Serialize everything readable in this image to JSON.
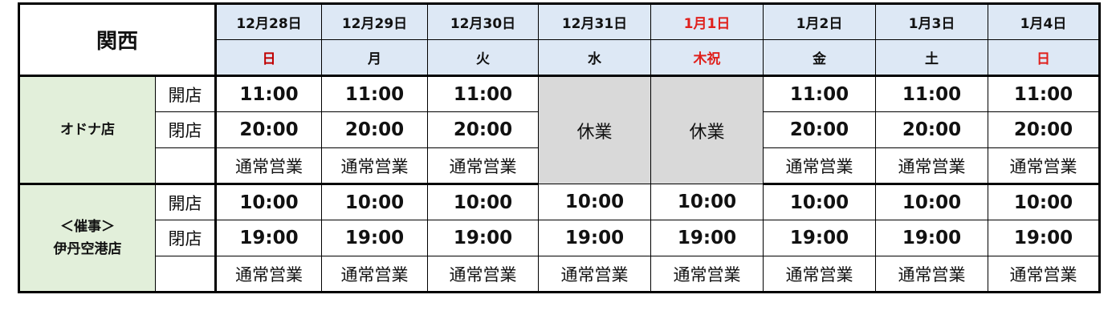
{
  "region": "関西",
  "days": [
    {
      "date": "12月28日",
      "weekday": "日",
      "date_color": "#111111",
      "weekday_color": "#c00000"
    },
    {
      "date": "12月29日",
      "weekday": "月",
      "date_color": "#111111",
      "weekday_color": "#111111"
    },
    {
      "date": "12月30日",
      "weekday": "火",
      "date_color": "#111111",
      "weekday_color": "#111111"
    },
    {
      "date": "12月31日",
      "weekday": "水",
      "date_color": "#111111",
      "weekday_color": "#111111"
    },
    {
      "date": "1月1日",
      "weekday": "木祝",
      "date_color": "#e0201c",
      "weekday_color": "#e0201c"
    },
    {
      "date": "1月2日",
      "weekday": "金",
      "date_color": "#111111",
      "weekday_color": "#111111"
    },
    {
      "date": "1月3日",
      "weekday": "土",
      "date_color": "#111111",
      "weekday_color": "#111111"
    },
    {
      "date": "1月4日",
      "weekday": "日",
      "date_color": "#111111",
      "weekday_color": "#e0201c"
    }
  ],
  "labels": {
    "open": "開店",
    "close": "閉店"
  },
  "stores": [
    {
      "name_lines": [
        "オドナ店"
      ],
      "schedule": [
        {
          "open": "11:00",
          "close": "20:00",
          "note": "通常営業"
        },
        {
          "open": "11:00",
          "close": "20:00",
          "note": "通常営業"
        },
        {
          "open": "11:00",
          "close": "20:00",
          "note": "通常営業"
        },
        {
          "closed": "休業"
        },
        {
          "closed": "休業"
        },
        {
          "open": "11:00",
          "close": "20:00",
          "note": "通常営業"
        },
        {
          "open": "11:00",
          "close": "20:00",
          "note": "通常営業"
        },
        {
          "open": "11:00",
          "close": "20:00",
          "note": "通常営業"
        }
      ]
    },
    {
      "name_lines": [
        "＜催事＞",
        "伊丹空港店"
      ],
      "schedule": [
        {
          "open": "10:00",
          "close": "19:00",
          "note": "通常営業"
        },
        {
          "open": "10:00",
          "close": "19:00",
          "note": "通常営業"
        },
        {
          "open": "10:00",
          "close": "19:00",
          "note": "通常営業"
        },
        {
          "open": "10:00",
          "close": "19:00",
          "note": "通常営業"
        },
        {
          "open": "10:00",
          "close": "19:00",
          "note": "通常営業"
        },
        {
          "open": "10:00",
          "close": "19:00",
          "note": "通常営業"
        },
        {
          "open": "10:00",
          "close": "19:00",
          "note": "通常営業"
        },
        {
          "open": "10:00",
          "close": "19:00",
          "note": "通常営業"
        }
      ]
    }
  ],
  "colors": {
    "header_bg": "#dde8f5",
    "store_bg": "#e2efda",
    "closed_bg": "#d9d9d9"
  }
}
